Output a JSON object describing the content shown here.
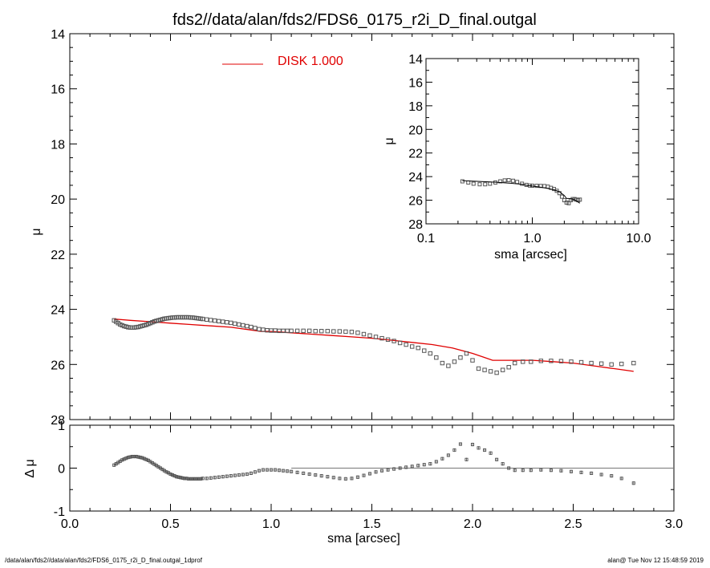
{
  "title": "fds2//data/alan/fds2/FDS6_0175_r2i_D_final.outgal",
  "footer": {
    "left": "/data/alan/fds2//data/alan/fds2/FDS6_0175_r2i_D_final.outgal_1dprof",
    "right": "alan@  Tue Nov 12 15:48:59 2019"
  },
  "colors": {
    "model": "#e00000",
    "data": "#555555",
    "axes": "#000000"
  },
  "chart_data": [
    {
      "id": "main-profile",
      "type": "scatter",
      "ylabel": "μ",
      "xlim": [
        0,
        3
      ],
      "ylim": [
        28,
        14
      ],
      "yreversed": true,
      "xticks": [
        0.0,
        0.5,
        1.0,
        1.5,
        2.0,
        2.5,
        3.0
      ],
      "yticks": [
        14,
        16,
        18,
        20,
        22,
        24,
        26,
        28
      ],
      "legend": {
        "label": "DISK  1.000",
        "position": "top-center"
      },
      "series": [
        {
          "kind": "points",
          "x": [
            0.22,
            0.23,
            0.24,
            0.25,
            0.26,
            0.27,
            0.28,
            0.29,
            0.3,
            0.31,
            0.32,
            0.33,
            0.34,
            0.35,
            0.36,
            0.37,
            0.38,
            0.39,
            0.4,
            0.41,
            0.42,
            0.43,
            0.44,
            0.45,
            0.46,
            0.47,
            0.48,
            0.49,
            0.5,
            0.51,
            0.52,
            0.53,
            0.54,
            0.55,
            0.56,
            0.57,
            0.58,
            0.59,
            0.6,
            0.61,
            0.62,
            0.63,
            0.64,
            0.65,
            0.66,
            0.68,
            0.7,
            0.72,
            0.74,
            0.76,
            0.78,
            0.8,
            0.82,
            0.84,
            0.86,
            0.88,
            0.9,
            0.92,
            0.94,
            0.96,
            0.98,
            1.0,
            1.02,
            1.04,
            1.06,
            1.08,
            1.1,
            1.13,
            1.16,
            1.19,
            1.22,
            1.25,
            1.28,
            1.31,
            1.34,
            1.37,
            1.4,
            1.43,
            1.46,
            1.49,
            1.52,
            1.55,
            1.58,
            1.61,
            1.64,
            1.67,
            1.7,
            1.73,
            1.76,
            1.79,
            1.82,
            1.85,
            1.88,
            1.91,
            1.94,
            1.97,
            2.0,
            2.03,
            2.06,
            2.09,
            2.12,
            2.15,
            2.18,
            2.21,
            2.25,
            2.29,
            2.34,
            2.39,
            2.44,
            2.49,
            2.54,
            2.59,
            2.64,
            2.69,
            2.74,
            2.8
          ],
          "y": [
            24.4,
            24.45,
            24.5,
            24.55,
            24.58,
            24.61,
            24.63,
            24.65,
            24.66,
            24.66,
            24.66,
            24.65,
            24.64,
            24.62,
            24.6,
            24.58,
            24.56,
            24.53,
            24.5,
            24.47,
            24.44,
            24.42,
            24.4,
            24.38,
            24.36,
            24.34,
            24.33,
            24.32,
            24.31,
            24.3,
            24.3,
            24.29,
            24.29,
            24.29,
            24.29,
            24.29,
            24.29,
            24.29,
            24.3,
            24.3,
            24.31,
            24.32,
            24.33,
            24.34,
            24.35,
            24.37,
            24.39,
            24.41,
            24.43,
            24.45,
            24.47,
            24.49,
            24.52,
            24.55,
            24.58,
            24.61,
            24.64,
            24.68,
            24.72,
            24.74,
            24.76,
            24.77,
            24.77,
            24.78,
            24.78,
            24.78,
            24.78,
            24.78,
            24.78,
            24.78,
            24.79,
            24.79,
            24.79,
            24.8,
            24.8,
            24.81,
            24.82,
            24.85,
            24.9,
            24.95,
            25.0,
            25.05,
            25.1,
            25.15,
            25.22,
            25.28,
            25.35,
            25.4,
            25.5,
            25.6,
            25.75,
            25.95,
            26.05,
            25.9,
            25.75,
            25.6,
            25.85,
            26.15,
            26.2,
            26.25,
            26.3,
            26.2,
            26.1,
            25.95,
            25.9,
            25.9,
            25.87,
            25.87,
            25.88,
            25.9,
            25.92,
            25.95,
            25.97,
            26.0,
            25.98,
            25.95
          ]
        },
        {
          "kind": "line",
          "name": "DISK  1.000",
          "x": [
            0.22,
            0.3,
            0.4,
            0.5,
            0.6,
            0.7,
            0.8,
            0.85,
            0.9,
            0.95,
            1.0,
            1.1,
            1.2,
            1.3,
            1.4,
            1.5,
            1.6,
            1.7,
            1.8,
            1.9,
            1.95,
            2.0,
            2.05,
            2.1,
            2.12,
            2.15,
            2.2,
            2.3,
            2.4,
            2.5,
            2.6,
            2.7,
            2.8
          ],
          "y": [
            24.35,
            24.4,
            24.45,
            24.5,
            24.55,
            24.6,
            24.65,
            24.7,
            24.75,
            24.8,
            24.8,
            24.85,
            24.9,
            24.95,
            25.0,
            25.05,
            25.12,
            25.2,
            25.28,
            25.4,
            25.5,
            25.6,
            25.72,
            25.85,
            25.85,
            25.85,
            25.85,
            25.85,
            25.9,
            25.95,
            26.05,
            26.15,
            26.25
          ]
        }
      ]
    },
    {
      "id": "inset-profile",
      "type": "scatter",
      "xlabel": "sma [arcsec]",
      "ylabel": "μ",
      "xscale": "log",
      "xlim": [
        0.1,
        10
      ],
      "ylim": [
        28,
        14
      ],
      "yreversed": true,
      "xticklabels": [
        "0.1",
        "1.0",
        "10.0"
      ],
      "yticks": [
        14,
        16,
        18,
        20,
        22,
        24,
        26,
        28
      ],
      "series": [
        {
          "kind": "points",
          "x": [
            0.22,
            0.25,
            0.28,
            0.32,
            0.36,
            0.4,
            0.45,
            0.5,
            0.55,
            0.6,
            0.66,
            0.72,
            0.8,
            0.88,
            0.95,
            1.0,
            1.1,
            1.2,
            1.3,
            1.4,
            1.5,
            1.6,
            1.7,
            1.8,
            1.9,
            2.0,
            2.1,
            2.2,
            2.3,
            2.4,
            2.5,
            2.6,
            2.7,
            2.8
          ],
          "y": [
            24.4,
            24.5,
            24.6,
            24.65,
            24.65,
            24.6,
            24.5,
            24.4,
            24.32,
            24.3,
            24.35,
            24.45,
            24.6,
            24.7,
            24.76,
            24.77,
            24.78,
            24.79,
            24.8,
            24.85,
            24.95,
            25.05,
            25.2,
            25.4,
            25.7,
            26.0,
            26.2,
            26.25,
            26.0,
            25.9,
            25.9,
            25.95,
            26.0,
            25.95
          ]
        },
        {
          "kind": "line",
          "x": [
            0.22,
            0.3,
            0.4,
            0.5,
            0.6,
            0.7,
            0.8,
            0.9,
            1.0,
            1.2,
            1.4,
            1.6,
            1.8,
            2.0,
            2.1,
            2.2,
            2.4,
            2.6,
            2.8
          ],
          "y": [
            24.35,
            24.4,
            24.45,
            24.5,
            24.55,
            24.6,
            24.65,
            24.75,
            24.8,
            24.9,
            25.0,
            25.12,
            25.28,
            25.6,
            25.85,
            25.85,
            25.9,
            26.05,
            26.25
          ]
        }
      ]
    },
    {
      "id": "residuals",
      "type": "scatter",
      "xlabel": "sma [arcsec]",
      "ylabel": "Δ μ",
      "xlim": [
        0,
        3
      ],
      "ylim": [
        -1,
        1
      ],
      "xticks": [
        0.0,
        0.5,
        1.0,
        1.5,
        2.0,
        2.5,
        3.0
      ],
      "yticks": [
        -1,
        0,
        1
      ],
      "zero_line": {
        "from": 1.1,
        "to": 3.0
      },
      "series": [
        {
          "kind": "errorbar-points",
          "x": [
            0.22,
            0.23,
            0.24,
            0.25,
            0.26,
            0.27,
            0.28,
            0.29,
            0.3,
            0.31,
            0.32,
            0.33,
            0.34,
            0.35,
            0.36,
            0.37,
            0.38,
            0.39,
            0.4,
            0.41,
            0.42,
            0.43,
            0.44,
            0.45,
            0.46,
            0.47,
            0.48,
            0.49,
            0.5,
            0.51,
            0.52,
            0.53,
            0.54,
            0.55,
            0.56,
            0.57,
            0.58,
            0.59,
            0.6,
            0.61,
            0.62,
            0.63,
            0.64,
            0.65,
            0.66,
            0.68,
            0.7,
            0.72,
            0.74,
            0.76,
            0.78,
            0.8,
            0.82,
            0.84,
            0.86,
            0.88,
            0.9,
            0.92,
            0.94,
            0.96,
            0.98,
            1.0,
            1.02,
            1.04,
            1.06,
            1.08,
            1.1,
            1.13,
            1.16,
            1.19,
            1.22,
            1.25,
            1.28,
            1.31,
            1.34,
            1.37,
            1.4,
            1.43,
            1.46,
            1.49,
            1.52,
            1.55,
            1.58,
            1.61,
            1.64,
            1.67,
            1.7,
            1.73,
            1.76,
            1.79,
            1.82,
            1.85,
            1.88,
            1.91,
            1.94,
            1.97,
            2.0,
            2.03,
            2.06,
            2.09,
            2.12,
            2.15,
            2.18,
            2.21,
            2.25,
            2.29,
            2.34,
            2.39,
            2.44,
            2.49,
            2.54,
            2.59,
            2.64,
            2.69,
            2.74,
            2.8
          ],
          "y": [
            0.07,
            0.1,
            0.13,
            0.16,
            0.19,
            0.21,
            0.23,
            0.25,
            0.26,
            0.27,
            0.27,
            0.27,
            0.26,
            0.25,
            0.24,
            0.22,
            0.2,
            0.18,
            0.15,
            0.12,
            0.09,
            0.06,
            0.03,
            0.0,
            -0.03,
            -0.06,
            -0.09,
            -0.11,
            -0.14,
            -0.16,
            -0.18,
            -0.2,
            -0.21,
            -0.22,
            -0.23,
            -0.24,
            -0.24,
            -0.25,
            -0.25,
            -0.25,
            -0.25,
            -0.25,
            -0.25,
            -0.25,
            -0.24,
            -0.24,
            -0.23,
            -0.22,
            -0.21,
            -0.2,
            -0.19,
            -0.18,
            -0.17,
            -0.16,
            -0.15,
            -0.14,
            -0.12,
            -0.09,
            -0.06,
            -0.04,
            -0.04,
            -0.04,
            -0.04,
            -0.05,
            -0.06,
            -0.07,
            -0.08,
            -0.1,
            -0.12,
            -0.14,
            -0.16,
            -0.18,
            -0.2,
            -0.22,
            -0.24,
            -0.25,
            -0.24,
            -0.21,
            -0.17,
            -0.13,
            -0.09,
            -0.06,
            -0.04,
            -0.02,
            0.0,
            0.02,
            0.04,
            0.06,
            0.08,
            0.1,
            0.15,
            0.22,
            0.3,
            0.42,
            0.56,
            0.2,
            0.55,
            0.47,
            0.42,
            0.35,
            0.2,
            0.1,
            0.0,
            -0.05,
            -0.05,
            -0.05,
            -0.04,
            -0.05,
            -0.06,
            -0.08,
            -0.1,
            -0.12,
            -0.15,
            -0.18,
            -0.24,
            -0.35
          ],
          "err": 0.04
        }
      ]
    }
  ]
}
